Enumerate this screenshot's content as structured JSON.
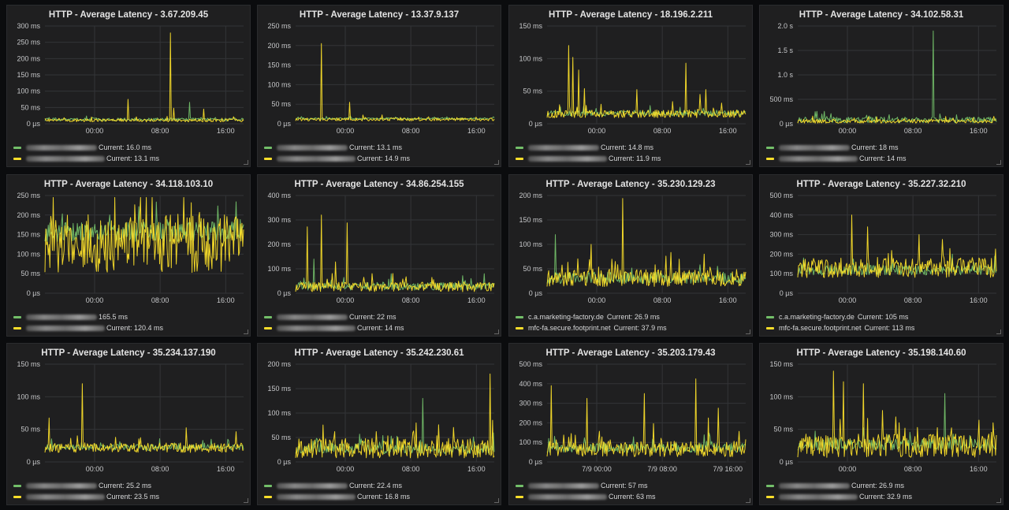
{
  "colors": {
    "green": "#73bf69",
    "yellow": "#fade2a",
    "grid": "#333437",
    "axis_text": "#c7c8ca"
  },
  "panels": [
    {
      "title": "HTTP - Average Latency - 3.67.209.45",
      "yticks": [
        "300 ms",
        "250 ms",
        "200 ms",
        "150 ms",
        "100 ms",
        "50 ms",
        "0 µs"
      ],
      "xticks": [
        "00:00",
        "08:00",
        "16:00"
      ],
      "legend": [
        {
          "color": "green",
          "name": "",
          "current": "Current: 16.0 ms"
        },
        {
          "color": "yellow",
          "name": "",
          "current": "Current: 13.1 ms"
        }
      ]
    },
    {
      "title": "HTTP - Average Latency - 13.37.9.137",
      "yticks": [
        "250 ms",
        "200 ms",
        "150 ms",
        "100 ms",
        "50 ms",
        "0 µs"
      ],
      "xticks": [
        "00:00",
        "08:00",
        "16:00"
      ],
      "legend": [
        {
          "color": "green",
          "name": "",
          "current": "Current: 13.1 ms"
        },
        {
          "color": "yellow",
          "name": "",
          "current": "Current: 14.9 ms"
        }
      ]
    },
    {
      "title": "HTTP - Average Latency - 18.196.2.211",
      "yticks": [
        "150 ms",
        "100 ms",
        "50 ms",
        "0 µs"
      ],
      "xticks": [
        "00:00",
        "08:00",
        "16:00"
      ],
      "legend": [
        {
          "color": "green",
          "name": "",
          "current": "Current: 14.8 ms"
        },
        {
          "color": "yellow",
          "name": "",
          "current": "Current: 11.9 ms"
        }
      ]
    },
    {
      "title": "HTTP - Average Latency - 34.102.58.31",
      "yticks": [
        "2.0 s",
        "1.5 s",
        "1.0 s",
        "500 ms",
        "0 µs"
      ],
      "xticks": [
        "00:00",
        "08:00",
        "16:00"
      ],
      "legend": [
        {
          "color": "green",
          "name": "",
          "current": "Current: 18 ms"
        },
        {
          "color": "yellow",
          "name": "",
          "current": "Current: 14 ms"
        }
      ]
    },
    {
      "title": "HTTP - Average Latency - 34.118.103.10",
      "yticks": [
        "250 ms",
        "200 ms",
        "150 ms",
        "100 ms",
        "50 ms",
        "0 µs"
      ],
      "xticks": [
        "00:00",
        "08:00",
        "16:00"
      ],
      "legend": [
        {
          "color": "green",
          "name": "",
          "current": "165.5 ms"
        },
        {
          "color": "yellow",
          "name": "",
          "current": "Current: 120.4 ms"
        }
      ]
    },
    {
      "title": "HTTP - Average Latency - 34.86.254.155",
      "yticks": [
        "400 ms",
        "300 ms",
        "200 ms",
        "100 ms",
        "0 µs"
      ],
      "xticks": [
        "00:00",
        "08:00",
        "16:00"
      ],
      "legend": [
        {
          "color": "green",
          "name": "",
          "current": "Current: 22 ms"
        },
        {
          "color": "yellow",
          "name": "",
          "current": "Current: 14 ms"
        }
      ]
    },
    {
      "title": "HTTP - Average Latency - 35.230.129.23",
      "yticks": [
        "200 ms",
        "150 ms",
        "100 ms",
        "50 ms",
        "0 µs"
      ],
      "xticks": [
        "00:00",
        "08:00",
        "16:00"
      ],
      "legend": [
        {
          "color": "green",
          "name": "c.a.marketing-factory.de",
          "current": "Current: 26.9 ms"
        },
        {
          "color": "yellow",
          "name": "mfc-fa.secure.footprint.net",
          "current": "Current: 37.9 ms"
        }
      ]
    },
    {
      "title": "HTTP - Average Latency - 35.227.32.210",
      "yticks": [
        "500 ms",
        "400 ms",
        "300 ms",
        "200 ms",
        "100 ms",
        "0 µs"
      ],
      "xticks": [
        "00:00",
        "08:00",
        "16:00"
      ],
      "legend": [
        {
          "color": "green",
          "name": "c.a.marketing-factory.de",
          "current": "Current: 105 ms"
        },
        {
          "color": "yellow",
          "name": "mfc-fa.secure.footprint.net",
          "current": "Current: 113 ms"
        }
      ]
    },
    {
      "title": "HTTP - Average Latency - 35.234.137.190",
      "yticks": [
        "150 ms",
        "100 ms",
        "50 ms",
        "0 µs"
      ],
      "xticks": [
        "00:00",
        "08:00",
        "16:00"
      ],
      "legend": [
        {
          "color": "green",
          "name": "",
          "current": "Current: 25.2 ms"
        },
        {
          "color": "yellow",
          "name": "",
          "current": "Current: 23.5 ms"
        }
      ]
    },
    {
      "title": "HTTP - Average Latency - 35.242.230.61",
      "yticks": [
        "200 ms",
        "150 ms",
        "100 ms",
        "50 ms",
        "0 µs"
      ],
      "xticks": [
        "00:00",
        "08:00",
        "16:00"
      ],
      "legend": [
        {
          "color": "green",
          "name": "",
          "current": "Current: 22.4 ms"
        },
        {
          "color": "yellow",
          "name": "",
          "current": "Current: 16.8 ms"
        }
      ]
    },
    {
      "title": "HTTP - Average Latency - 35.203.179.43",
      "yticks": [
        "500 ms",
        "400 ms",
        "300 ms",
        "200 ms",
        "100 ms",
        "0 µs"
      ],
      "xticks": [
        "7/9 00:00",
        "7/9 08:00",
        "7/9 16:00"
      ],
      "legend": [
        {
          "color": "green",
          "name": "",
          "current": "Current: 57 ms"
        },
        {
          "color": "yellow",
          "name": "",
          "current": "Current: 63 ms"
        }
      ]
    },
    {
      "title": "HTTP - Average Latency - 35.198.140.60",
      "yticks": [
        "150 ms",
        "100 ms",
        "50 ms",
        "0 µs"
      ],
      "xticks": [
        "00:00",
        "08:00",
        "16:00"
      ],
      "legend": [
        {
          "color": "green",
          "name": "",
          "current": "Current: 26.9 ms"
        },
        {
          "color": "yellow",
          "name": "",
          "current": "Current: 32.9 ms"
        }
      ]
    }
  ]
}
